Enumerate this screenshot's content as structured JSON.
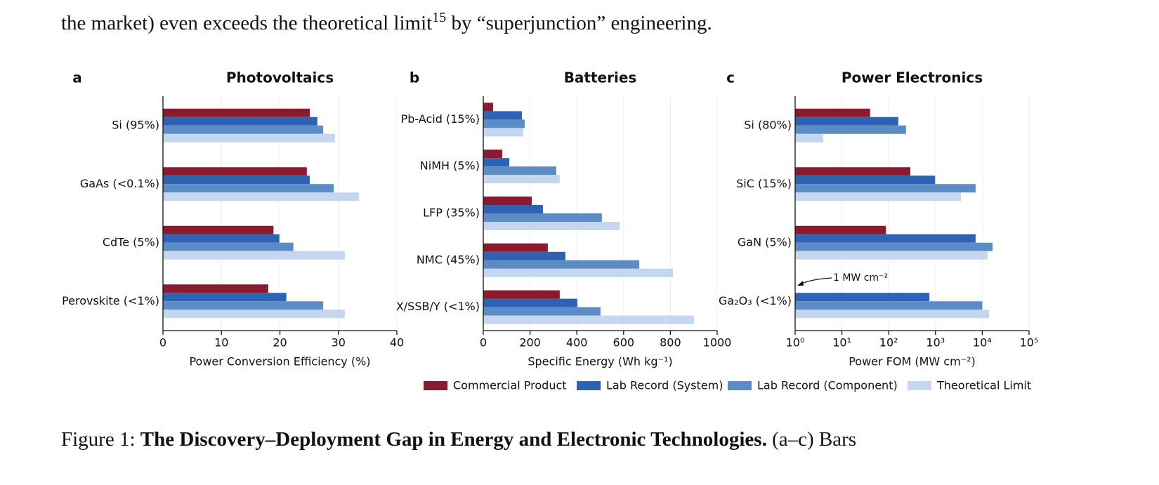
{
  "body": {
    "before": "the market) even exceeds the theoretical limit",
    "ref": "15",
    "after": " by “superjunction” engineering."
  },
  "legend": [
    {
      "name": "Commercial Product",
      "color": "#8b1a2f"
    },
    {
      "name": "Lab Record (System)",
      "color": "#2e62b5"
    },
    {
      "name": "Lab Record (Component)",
      "color": "#5b8cc6"
    },
    {
      "name": "Theoretical Limit",
      "color": "#c5d7ee"
    }
  ],
  "chart_data": [
    {
      "type": "bar",
      "orientation": "horizontal",
      "panel": "a",
      "title": "Photovoltaics",
      "x_label": "Power Conversion Efficiency (%)",
      "categories": [
        "Si (95%)",
        "GaAs (<0.1%)",
        "CdTe (5%)",
        "Perovskite (<1%)"
      ],
      "series": [
        {
          "values": [
            25.1,
            24.6,
            18.9,
            18.0
          ]
        },
        {
          "values": [
            26.4,
            25.1,
            19.9,
            21.1
          ]
        },
        {
          "values": [
            27.4,
            29.2,
            22.3,
            27.4
          ]
        },
        {
          "values": [
            29.4,
            33.5,
            31.1,
            31.1
          ]
        }
      ],
      "xlim": [
        0,
        40
      ],
      "xticks": [
        0,
        10,
        20,
        30,
        40
      ],
      "grid": true
    },
    {
      "type": "bar",
      "orientation": "horizontal",
      "panel": "b",
      "title": "Batteries",
      "x_label": "Specific Energy (Wh kg⁻¹)",
      "categories": [
        "Pb-Acid (15%)",
        "NiMH (5%)",
        "LFP (35%)",
        "NMC (45%)",
        "X/SSB/Y (<1%)"
      ],
      "series": [
        {
          "values": [
            42,
            81,
            207,
            276,
            327
          ]
        },
        {
          "values": [
            165,
            111,
            255,
            351,
            402
          ]
        },
        {
          "values": [
            177,
            312,
            507,
            667,
            501
          ]
        },
        {
          "values": [
            171,
            327,
            583,
            811,
            901
          ]
        }
      ],
      "xlim": [
        0,
        1000
      ],
      "xticks": [
        0,
        200,
        400,
        600,
        800,
        1000
      ],
      "grid": true
    },
    {
      "type": "bar",
      "orientation": "horizontal",
      "panel": "c",
      "title": "Power Electronics",
      "x_label": "Power FOM (MW cm⁻²)",
      "log_scale": true,
      "categories": [
        "Si (80%)",
        "SiC (15%)",
        "GaN (5%)",
        "Ga₂O₃ (<1%)"
      ],
      "series": [
        {
          "values": [
            40,
            290,
            87,
            1
          ]
        },
        {
          "values": [
            160,
            980,
            7200,
            740
          ]
        },
        {
          "values": [
            235,
            7200,
            16600,
            10000
          ]
        },
        {
          "values": [
            4,
            3500,
            13000,
            14000
          ]
        }
      ],
      "xlim": [
        1,
        100000
      ],
      "xticks": [
        {
          "value": 1,
          "label": "10⁰"
        },
        {
          "value": 10,
          "label": "10¹"
        },
        {
          "value": 100,
          "label": "10²"
        },
        {
          "value": 1000,
          "label": "10³"
        },
        {
          "value": 10000,
          "label": "10⁴"
        },
        {
          "value": 100000,
          "label": "10⁵"
        }
      ],
      "annotation": "1 MW cm⁻²",
      "grid": true
    }
  ],
  "caption": {
    "label": "Figure 1:",
    "title": "The Discovery–Deployment Gap in Energy and Electronic Technologies.",
    "text": "(a–c) Bars"
  }
}
